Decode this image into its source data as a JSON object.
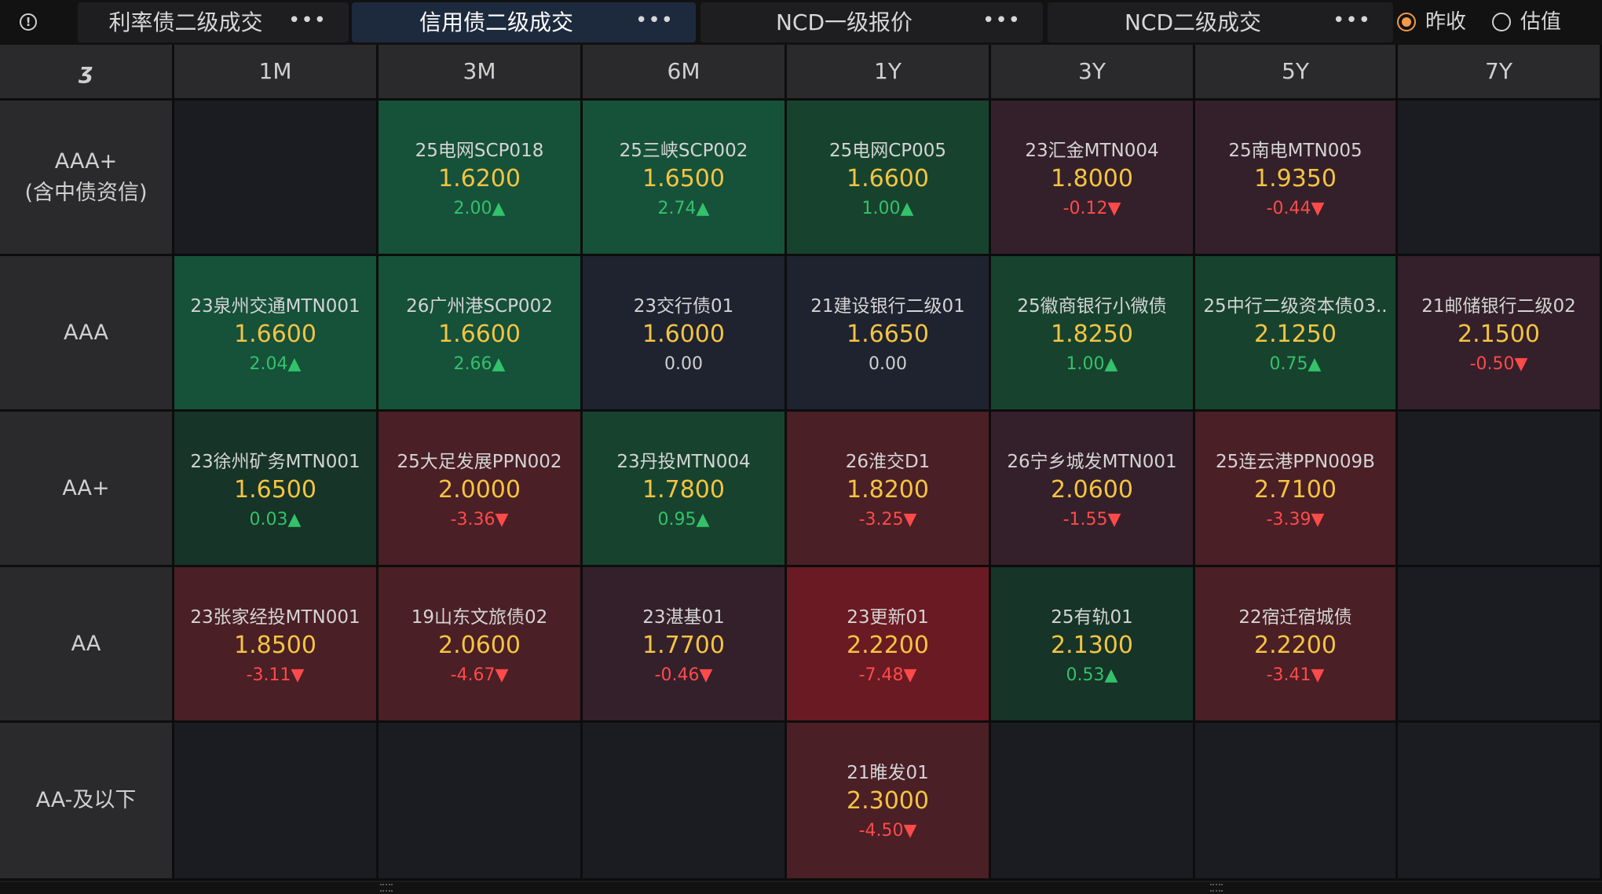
{
  "tabs": [
    {
      "label": "利率债二级成交",
      "more": "•••",
      "active": false
    },
    {
      "label": "信用债二级成交",
      "more": "•••",
      "active": true
    },
    {
      "label": "NCD一级报价",
      "more": "•••",
      "active": false
    },
    {
      "label": "NCD二级成交",
      "more": "•••",
      "active": false
    }
  ],
  "radios": [
    {
      "label": "昨收",
      "checked": true
    },
    {
      "label": "估值",
      "checked": false
    }
  ],
  "info_icon": "!",
  "corner_icon": "ʒ",
  "columns": [
    "1M",
    "3M",
    "6M",
    "1Y",
    "3Y",
    "5Y",
    "7Y"
  ],
  "rows": [
    {
      "label": "AAA+\n(含中债资信)",
      "cells": [
        null,
        {
          "name": "25电网SCP018",
          "rate": "1.6200",
          "chg": "2.00▲",
          "dir": "up",
          "tone": "g3"
        },
        {
          "name": "25三峡SCP002",
          "rate": "1.6500",
          "chg": "2.74▲",
          "dir": "up",
          "tone": "g3"
        },
        {
          "name": "25电网CP005",
          "rate": "1.6600",
          "chg": "1.00▲",
          "dir": "up",
          "tone": "g2"
        },
        {
          "name": "23汇金MTN004",
          "rate": "1.8000",
          "chg": "-0.12▼",
          "dir": "down",
          "tone": "r1"
        },
        {
          "name": "25南电MTN005",
          "rate": "1.9350",
          "chg": "-0.44▼",
          "dir": "down",
          "tone": "r1"
        },
        null
      ]
    },
    {
      "label": "AAA",
      "cells": [
        {
          "name": "23泉州交通MTN001",
          "rate": "1.6600",
          "chg": "2.04▲",
          "dir": "up",
          "tone": "g3"
        },
        {
          "name": "26广州港SCP002",
          "rate": "1.6600",
          "chg": "2.66▲",
          "dir": "up",
          "tone": "g3"
        },
        {
          "name": "23交行债01",
          "rate": "1.6000",
          "chg": "0.00",
          "dir": "flat",
          "tone": "n"
        },
        {
          "name": "21建设银行二级01",
          "rate": "1.6650",
          "chg": "0.00",
          "dir": "flat",
          "tone": "n"
        },
        {
          "name": "25徽商银行小微债",
          "rate": "1.8250",
          "chg": "1.00▲",
          "dir": "up",
          "tone": "g2"
        },
        {
          "name": "25中行二级资本债03..",
          "rate": "2.1250",
          "chg": "0.75▲",
          "dir": "up",
          "tone": "g2"
        },
        {
          "name": "21邮储银行二级02",
          "rate": "2.1500",
          "chg": "-0.50▼",
          "dir": "down",
          "tone": "r1"
        }
      ]
    },
    {
      "label": "AA+",
      "cells": [
        {
          "name": "23徐州矿务MTN001",
          "rate": "1.6500",
          "chg": "0.03▲",
          "dir": "up",
          "tone": "g1"
        },
        {
          "name": "25大足发展PPN002",
          "rate": "2.0000",
          "chg": "-3.36▼",
          "dir": "down",
          "tone": "r2"
        },
        {
          "name": "23丹投MTN004",
          "rate": "1.7800",
          "chg": "0.95▲",
          "dir": "up",
          "tone": "g2"
        },
        {
          "name": "26淮交D1",
          "rate": "1.8200",
          "chg": "-3.25▼",
          "dir": "down",
          "tone": "r2"
        },
        {
          "name": "26宁乡城发MTN001",
          "rate": "2.0600",
          "chg": "-1.55▼",
          "dir": "down",
          "tone": "r1"
        },
        {
          "name": "25连云港PPN009B",
          "rate": "2.7100",
          "chg": "-3.39▼",
          "dir": "down",
          "tone": "r2"
        },
        null
      ]
    },
    {
      "label": "AA",
      "cells": [
        {
          "name": "23张家经投MTN001",
          "rate": "1.8500",
          "chg": "-3.11▼",
          "dir": "down",
          "tone": "r2"
        },
        {
          "name": "19山东文旅债02",
          "rate": "2.0600",
          "chg": "-4.67▼",
          "dir": "down",
          "tone": "r2"
        },
        {
          "name": "23湛基01",
          "rate": "1.7700",
          "chg": "-0.46▼",
          "dir": "down",
          "tone": "r1"
        },
        {
          "name": "23更新01",
          "rate": "2.2200",
          "chg": "-7.48▼",
          "dir": "down",
          "tone": "r3"
        },
        {
          "name": "25有轨01",
          "rate": "2.1300",
          "chg": "0.53▲",
          "dir": "up",
          "tone": "g1"
        },
        {
          "name": "22宿迁宿城债",
          "rate": "2.2200",
          "chg": "-3.41▼",
          "dir": "down",
          "tone": "r2"
        },
        null
      ]
    },
    {
      "label": "AA-及以下",
      "cells": [
        null,
        null,
        null,
        {
          "name": "21睢发01",
          "rate": "2.3000",
          "chg": "-4.50▼",
          "dir": "down",
          "tone": "r2"
        },
        null,
        null,
        null
      ]
    }
  ]
}
